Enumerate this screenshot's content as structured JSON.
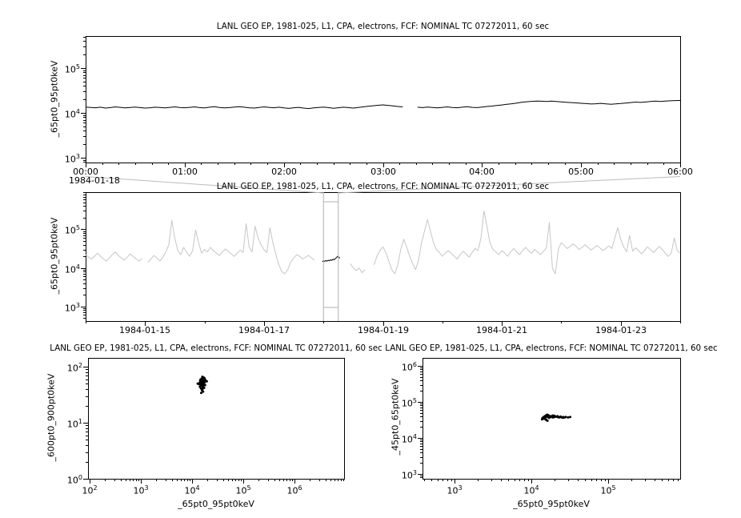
{
  "colors": {
    "background": "#ffffff",
    "foreground": "#000000",
    "context_series": "#c6c6c6",
    "context_box": "#b0b0b0",
    "connector": "#bbbbbb"
  },
  "chart_data": [
    {
      "type": "line",
      "title": "LANL GEO EP, 1981-025, L1, CPA, electrons, FCF: NOMINAL TC 07272011, 60 sec",
      "ylabel": "_65pt0_95pt0keV",
      "x_context_label": "1984-01-18",
      "xlim": [
        0,
        6
      ],
      "ylim": [
        781,
        518000
      ],
      "x_ticks": [
        {
          "v": 0,
          "label": "00:00"
        },
        {
          "v": 1,
          "label": "01:00"
        },
        {
          "v": 2,
          "label": "02:00"
        },
        {
          "v": 3,
          "label": "03:00"
        },
        {
          "v": 4,
          "label": "04:00"
        },
        {
          "v": 5,
          "label": "05:00"
        },
        {
          "v": 6,
          "label": "06:00"
        }
      ],
      "x_minor_step": 0.1666667,
      "value_unit": 1000,
      "values": [
        13.5,
        13.2,
        13.0,
        13.4,
        12.8,
        13.1,
        13.6,
        13.3,
        12.9,
        13.2,
        13.5,
        13.1,
        12.8,
        13.0,
        13.4,
        13.2,
        12.9,
        13.3,
        13.6,
        13.2,
        13.0,
        13.3,
        13.6,
        13.1,
        12.9,
        13.4,
        13.7,
        13.2,
        12.9,
        13.1,
        13.5,
        13.8,
        13.4,
        13.0,
        12.8,
        13.2,
        13.6,
        13.3,
        13.0,
        13.4,
        12.9,
        12.6,
        13.0,
        13.3,
        12.8,
        12.5,
        12.9,
        13.2,
        13.5,
        13.1,
        12.7,
        13.0,
        13.4,
        13.1,
        12.8,
        13.2,
        13.6,
        14.0,
        14.4,
        14.8,
        15.1,
        14.7,
        14.3,
        13.9,
        13.6,
        null,
        null,
        13.4,
        13.1,
        13.5,
        13.2,
        12.9,
        13.3,
        13.6,
        13.2,
        13.0,
        13.4,
        13.7,
        13.3,
        13.1,
        13.5,
        13.9,
        14.2,
        14.6,
        15.0,
        15.5,
        16.0,
        16.6,
        17.2,
        17.7,
        18.1,
        18.4,
        18.2,
        17.9,
        18.3,
        18.0,
        17.6,
        17.3,
        17.0,
        16.7,
        16.4,
        16.1,
        15.8,
        16.0,
        16.3,
        15.9,
        15.6,
        15.9,
        16.2,
        16.6,
        17.0,
        17.4,
        17.1,
        17.5,
        17.9,
        18.3,
        18.0,
        18.4,
        18.6,
        18.8,
        18.9
      ]
    },
    {
      "type": "line",
      "title": "LANL GEO EP, 1981-025, L1, CPA, electrons, FCF: NOMINAL TC 07272011, 60 sec",
      "ylabel": "_65pt0_95pt0keV",
      "xlim": [
        0,
        10
      ],
      "ylim": [
        418,
        920000
      ],
      "x_ticks": [
        {
          "v": 1,
          "label": "1984-01-15"
        },
        {
          "v": 3,
          "label": "1984-01-17"
        },
        {
          "v": 5,
          "label": "1984-01-19"
        },
        {
          "v": 7,
          "label": "1984-01-21"
        },
        {
          "v": 9,
          "label": "1984-01-23"
        }
      ],
      "x_minor_step": 1,
      "value_unit": 1000,
      "values": [
        22,
        19,
        17,
        20,
        24,
        20,
        17,
        15,
        18,
        22,
        26,
        21,
        18,
        16,
        19,
        23,
        20,
        17,
        15,
        18,
        null,
        14,
        17,
        21,
        18,
        15,
        19,
        26,
        40,
        170,
        60,
        28,
        22,
        34,
        25,
        20,
        28,
        95,
        45,
        24,
        30,
        26,
        34,
        28,
        24,
        21,
        26,
        31,
        27,
        23,
        20,
        24,
        29,
        25,
        140,
        35,
        26,
        120,
        60,
        40,
        30,
        25,
        110,
        45,
        22,
        12,
        8,
        7,
        9,
        14,
        18,
        22,
        20,
        17,
        19,
        21,
        18,
        16,
        null,
        null,
        null,
        null,
        null,
        null,
        null,
        null,
        null,
        null,
        null,
        13,
        10,
        8.5,
        10,
        7.5,
        9,
        null,
        null,
        12,
        20,
        28,
        35,
        25,
        15,
        9,
        7,
        12,
        30,
        55,
        35,
        20,
        13,
        9,
        16,
        45,
        90,
        180,
        90,
        45,
        30,
        25,
        20,
        24,
        28,
        24,
        20,
        17,
        22,
        27,
        23,
        19,
        25,
        32,
        28,
        60,
        300,
        120,
        45,
        30,
        26,
        22,
        28,
        24,
        20,
        26,
        32,
        26,
        22,
        28,
        34,
        28,
        24,
        30,
        26,
        22,
        27,
        33,
        150,
        10,
        7,
        30,
        45,
        38,
        32,
        36,
        42,
        36,
        30,
        34,
        40,
        34,
        29,
        33,
        38,
        33,
        28,
        32,
        37,
        32,
        60,
        110,
        55,
        35,
        26,
        70,
        27,
        33,
        28,
        23,
        28,
        35,
        30,
        25,
        30,
        36,
        30,
        24,
        20,
        24,
        60,
        28,
        24
      ],
      "highlight": {
        "t0": 3.98,
        "dt": 0.02,
        "value_unit": 1000,
        "values": [
          14.5,
          15.2,
          14.8,
          15.5,
          14.9,
          15.8,
          15.3,
          16.2,
          15.6,
          16.8,
          16.1,
          17.5,
          18.5,
          20.0,
          18.8,
          17.8
        ]
      },
      "context_box": {
        "t0": 4.0,
        "t1": 4.25
      }
    },
    {
      "type": "scatter",
      "title": "LANL GEO EP, 1981-025, L1, CPA, electrons, FCF: NOMINAL TC 07272011, 60 sec",
      "xlabel": "_65pt0_95pt0keV",
      "ylabel": "_600pt0_900pt0keV",
      "xlim": [
        93,
        9310000
      ],
      "ylim": [
        1,
        143.6
      ],
      "points": [
        [
          14500,
          52
        ],
        [
          15200,
          55
        ],
        [
          16000,
          58
        ],
        [
          15500,
          50
        ],
        [
          14800,
          47
        ],
        [
          16300,
          53
        ],
        [
          17000,
          56
        ],
        [
          15800,
          60
        ],
        [
          16500,
          62
        ],
        [
          15000,
          57
        ],
        [
          14200,
          44
        ],
        [
          16800,
          49
        ],
        [
          17400,
          52
        ],
        [
          15300,
          46
        ],
        [
          16100,
          43
        ],
        [
          14900,
          41
        ],
        [
          15600,
          38
        ],
        [
          16400,
          36
        ],
        [
          15100,
          34
        ],
        [
          14600,
          48
        ],
        [
          17800,
          54
        ],
        [
          18200,
          58
        ],
        [
          16900,
          64
        ],
        [
          15900,
          66
        ],
        [
          15400,
          61
        ],
        [
          14400,
          56
        ],
        [
          13900,
          51
        ],
        [
          16600,
          46
        ],
        [
          17200,
          42
        ],
        [
          18000,
          47
        ],
        [
          16200,
          51
        ],
        [
          15700,
          54
        ],
        [
          14700,
          59
        ],
        [
          13600,
          49
        ],
        [
          16000,
          40
        ],
        [
          17500,
          62
        ],
        [
          12900,
          50
        ],
        [
          19400,
          55
        ]
      ]
    },
    {
      "type": "scatter",
      "title": "LANL GEO EP, 1981-025, L1, CPA, electrons, FCF: NOMINAL TC 07272011, 60 sec",
      "xlabel": "_65pt0_95pt0keV",
      "ylabel": "_45pt0_65pt0keV",
      "xlim": [
        383,
        866000
      ],
      "ylim": [
        736,
        1668000
      ],
      "points": [
        [
          14000,
          36000
        ],
        [
          14500,
          38000
        ],
        [
          15000,
          40000
        ],
        [
          15500,
          42000
        ],
        [
          16000,
          44000
        ],
        [
          16500,
          43000
        ],
        [
          17000,
          41000
        ],
        [
          17500,
          39000
        ],
        [
          18000,
          38000
        ],
        [
          19000,
          37000
        ],
        [
          20000,
          38000
        ],
        [
          21000,
          39000
        ],
        [
          22000,
          38000
        ],
        [
          23000,
          37000
        ],
        [
          24000,
          38000
        ],
        [
          25000,
          37000
        ],
        [
          26000,
          38000
        ],
        [
          27000,
          37000
        ],
        [
          28000,
          38000
        ],
        [
          30000,
          37000
        ],
        [
          32000,
          38000
        ],
        [
          15000,
          36000
        ],
        [
          16000,
          38000
        ],
        [
          17000,
          36000
        ],
        [
          18000,
          40000
        ],
        [
          19000,
          42000
        ],
        [
          20000,
          41000
        ],
        [
          14800,
          34000
        ],
        [
          15500,
          32000
        ],
        [
          16200,
          30000
        ],
        [
          13800,
          33000
        ],
        [
          22000,
          40000
        ],
        [
          24000,
          39000
        ],
        [
          26000,
          36500
        ]
      ]
    }
  ]
}
